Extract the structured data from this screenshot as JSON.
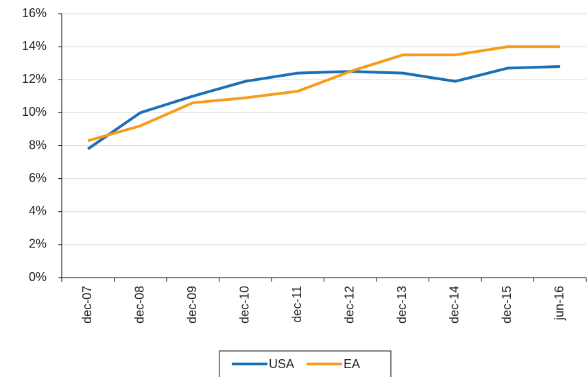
{
  "chart_data": {
    "type": "line",
    "categories": [
      "dec-07",
      "dec-08",
      "dec-09",
      "dec-10",
      "dec-11",
      "dec-12",
      "dec-13",
      "dec-14",
      "dec-15",
      "jun-16"
    ],
    "series": [
      {
        "name": "USA",
        "color": "#1a6fb5",
        "values": [
          7.8,
          10.0,
          11.0,
          11.9,
          12.4,
          12.5,
          12.4,
          11.9,
          12.7,
          12.8
        ]
      },
      {
        "name": "EA",
        "color": "#f59c1a",
        "values": [
          8.3,
          9.2,
          10.6,
          10.9,
          11.3,
          12.5,
          13.5,
          13.5,
          14.0,
          14.0
        ]
      }
    ],
    "ylim": [
      0,
      16
    ],
    "yticks": [
      {
        "value": 0,
        "label": "0%"
      },
      {
        "value": 2,
        "label": "2%"
      },
      {
        "value": 4,
        "label": "4%"
      },
      {
        "value": 6,
        "label": "6%"
      },
      {
        "value": 8,
        "label": "8%"
      },
      {
        "value": 10,
        "label": "10%"
      },
      {
        "value": 12,
        "label": "12%"
      },
      {
        "value": 14,
        "label": "14%"
      },
      {
        "value": 16,
        "label": "16%"
      }
    ],
    "grid": true,
    "legend": "bottom"
  }
}
